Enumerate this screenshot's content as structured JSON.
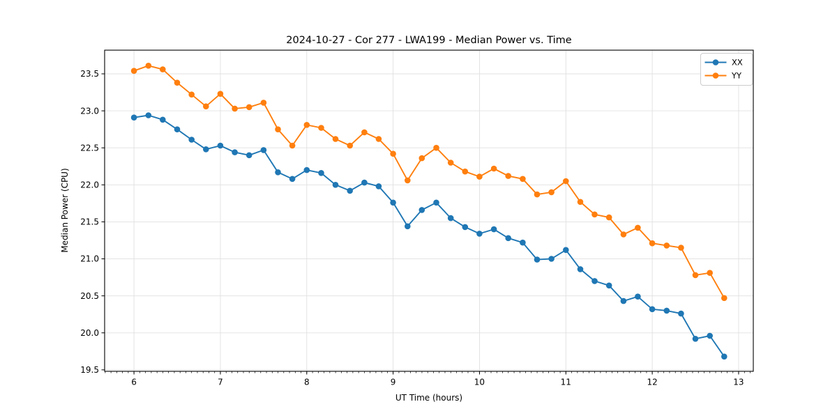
{
  "chart_data": {
    "type": "line",
    "title": "2024-10-27 - Cor 277 - LWA199 - Median Power vs. Time",
    "xlabel": "UT Time (hours)",
    "ylabel": "Median Power (CPU)",
    "x": [
      6.0,
      6.167,
      6.333,
      6.5,
      6.667,
      6.833,
      7.0,
      7.167,
      7.333,
      7.5,
      7.667,
      7.833,
      8.0,
      8.167,
      8.333,
      8.5,
      8.667,
      8.833,
      9.0,
      9.167,
      9.333,
      9.5,
      9.667,
      9.833,
      10.0,
      10.167,
      10.333,
      10.5,
      10.667,
      10.833,
      11.0,
      11.167,
      11.333,
      11.5,
      11.667,
      11.833,
      12.0,
      12.167,
      12.333,
      12.5,
      12.667,
      12.833
    ],
    "series": [
      {
        "name": "XX",
        "color": "#1f77b4",
        "values": [
          22.91,
          22.94,
          22.88,
          22.75,
          22.61,
          22.48,
          22.53,
          22.44,
          22.4,
          22.47,
          22.17,
          22.08,
          22.2,
          22.16,
          22.0,
          21.92,
          22.03,
          21.98,
          21.76,
          21.44,
          21.66,
          21.76,
          21.55,
          21.43,
          21.34,
          21.4,
          21.28,
          21.22,
          20.99,
          21.0,
          21.12,
          20.86,
          20.7,
          20.64,
          20.43,
          20.49,
          20.32,
          20.3,
          20.26,
          19.92,
          19.96,
          19.68
        ]
      },
      {
        "name": "YY",
        "color": "#ff7f0e",
        "values": [
          23.54,
          23.61,
          23.56,
          23.38,
          23.22,
          23.06,
          23.23,
          23.03,
          23.05,
          23.11,
          22.75,
          22.53,
          22.81,
          22.77,
          22.62,
          22.53,
          22.71,
          22.62,
          22.42,
          22.06,
          22.36,
          22.5,
          22.3,
          22.18,
          22.11,
          22.22,
          22.12,
          22.08,
          21.87,
          21.9,
          22.05,
          21.77,
          21.6,
          21.56,
          21.33,
          21.42,
          21.21,
          21.18,
          21.15,
          20.78,
          20.81,
          20.47
        ]
      }
    ],
    "xticks": [
      6,
      7,
      8,
      9,
      10,
      11,
      12,
      13
    ],
    "yticks": [
      19.5,
      20.0,
      20.5,
      21.0,
      21.5,
      22.0,
      22.5,
      23.0,
      23.5
    ],
    "xlim": [
      5.66,
      13.17
    ],
    "ylim": [
      19.48,
      23.82
    ],
    "minor_xtick_step": 0.06667,
    "grid": true,
    "grid_color": "#e0e0e0",
    "spine_color": "#000000",
    "background": "#ffffff",
    "legend_position": "upper right"
  }
}
